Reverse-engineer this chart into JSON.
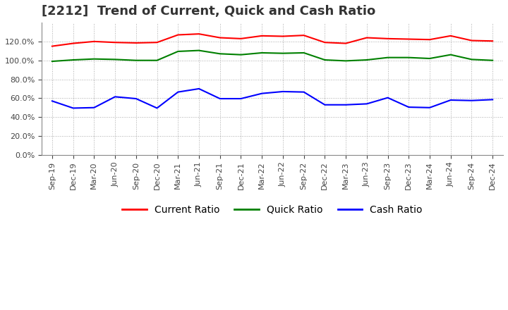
{
  "title": "[2212]  Trend of Current, Quick and Cash Ratio",
  "x_labels": [
    "Sep-19",
    "Dec-19",
    "Mar-20",
    "Jun-20",
    "Sep-20",
    "Dec-20",
    "Mar-21",
    "Jun-21",
    "Sep-21",
    "Dec-21",
    "Mar-22",
    "Jun-22",
    "Sep-22",
    "Dec-22",
    "Mar-23",
    "Jun-23",
    "Sep-23",
    "Dec-23",
    "Mar-24",
    "Jun-24",
    "Sep-24",
    "Dec-24"
  ],
  "current_ratio": [
    115.0,
    118.0,
    120.0,
    119.0,
    118.5,
    119.0,
    127.0,
    128.0,
    124.0,
    123.0,
    126.0,
    125.5,
    126.5,
    119.0,
    118.0,
    124.0,
    123.0,
    122.5,
    122.0,
    126.0,
    121.0,
    120.5
  ],
  "quick_ratio": [
    99.0,
    100.5,
    101.5,
    101.0,
    100.0,
    100.0,
    109.5,
    110.5,
    107.0,
    106.0,
    108.0,
    107.5,
    108.0,
    100.5,
    99.5,
    100.5,
    103.0,
    103.0,
    102.0,
    106.0,
    101.0,
    100.0
  ],
  "cash_ratio": [
    57.0,
    49.5,
    50.0,
    61.5,
    59.5,
    49.5,
    66.5,
    70.0,
    59.5,
    59.5,
    65.0,
    67.0,
    66.5,
    53.0,
    53.0,
    54.0,
    60.5,
    50.5,
    50.0,
    58.0,
    57.5,
    58.5
  ],
  "current_color": "#ff0000",
  "quick_color": "#008000",
  "cash_color": "#0000ff",
  "bg_color": "#ffffff",
  "grid_color": "#aaaaaa",
  "ylim": [
    0,
    140
  ],
  "yticks": [
    0,
    20,
    40,
    60,
    80,
    100,
    120
  ],
  "legend_labels": [
    "Current Ratio",
    "Quick Ratio",
    "Cash Ratio"
  ],
  "title_fontsize": 13,
  "tick_fontsize": 8,
  "legend_fontsize": 10
}
